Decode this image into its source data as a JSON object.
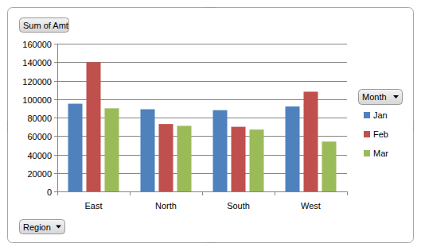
{
  "chart_data": {
    "type": "bar",
    "title": "Sum of Amt",
    "x_label": "Region",
    "legend_title": "Month",
    "categories": [
      "East",
      "North",
      "South",
      "West"
    ],
    "series": [
      {
        "name": "Jan",
        "color": "#4f81bd",
        "values": [
          95000,
          89000,
          88000,
          92000
        ]
      },
      {
        "name": "Feb",
        "color": "#c0504d",
        "values": [
          140000,
          73000,
          70000,
          108000
        ]
      },
      {
        "name": "Mar",
        "color": "#9bbb59",
        "values": [
          90000,
          71000,
          67000,
          54000
        ]
      }
    ],
    "ylim": [
      0,
      160000
    ],
    "yticks": [
      0,
      20000,
      40000,
      60000,
      80000,
      100000,
      120000,
      140000,
      160000
    ],
    "grid": true,
    "legend": "right"
  }
}
